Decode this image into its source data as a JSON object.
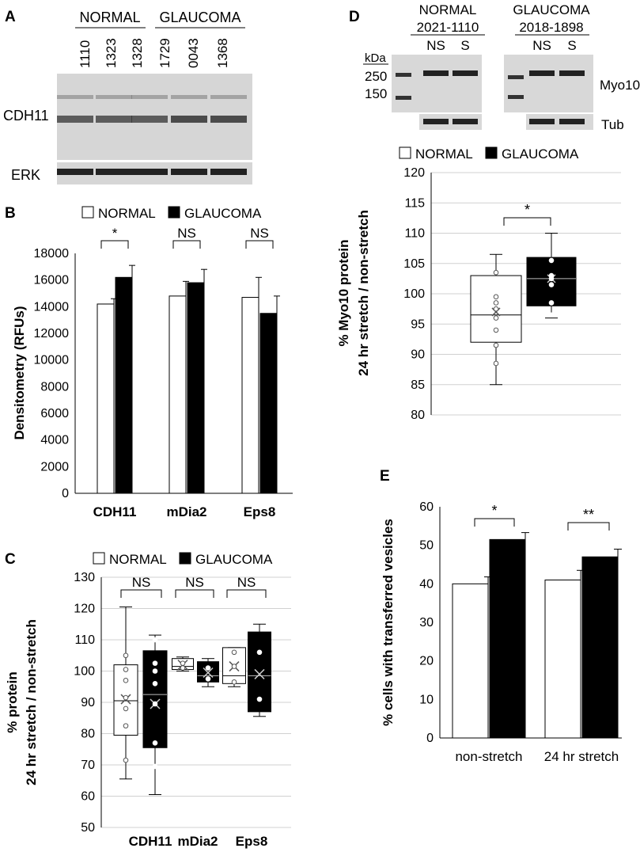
{
  "chart_data": [
    {
      "id": "A",
      "type": "western-blot",
      "panel_label": "A",
      "group_labels": [
        "NORMAL",
        "GLAUCOMA"
      ],
      "lane_labels": [
        "1110",
        "1323",
        "1328",
        "1729",
        "0043",
        "1368"
      ],
      "row_labels": [
        "CDH11",
        "ERK"
      ]
    },
    {
      "id": "B",
      "type": "bar",
      "panel_label": "B",
      "legend": [
        "NORMAL",
        "GLAUCOMA"
      ],
      "categories": [
        "CDH11",
        "mDia2",
        "Eps8"
      ],
      "series": [
        {
          "name": "NORMAL",
          "values": [
            14200,
            14800,
            14700
          ],
          "errors": [
            400,
            1100,
            1500
          ]
        },
        {
          "name": "GLAUCOMA",
          "values": [
            16200,
            15800,
            13500
          ],
          "errors": [
            900,
            1000,
            1300
          ]
        }
      ],
      "significance": [
        "*",
        "NS",
        "NS"
      ],
      "ylabel": "Densitometry (RFUs)",
      "ylim": [
        0,
        18000
      ],
      "yticks": [
        "0",
        "2000",
        "4000",
        "6000",
        "8000",
        "10000",
        "12000",
        "14000",
        "16000",
        "18000"
      ]
    },
    {
      "id": "C",
      "type": "box",
      "panel_label": "C",
      "legend": [
        "NORMAL",
        "GLAUCOMA"
      ],
      "categories": [
        "CDH11",
        "mDia2",
        "Eps8"
      ],
      "ylabel_lines": [
        "% protein",
        "24 hr stretch / non-stretch"
      ],
      "ylim": [
        50,
        130
      ],
      "yticks": [
        "50",
        "60",
        "70",
        "80",
        "90",
        "100",
        "110",
        "120",
        "130"
      ],
      "significance": [
        "NS",
        "NS",
        "NS"
      ],
      "boxes": [
        {
          "group": "NORMAL",
          "category": "CDH11",
          "min": 65.5,
          "q1": 79.5,
          "median": 90.5,
          "q3": 102,
          "max": 120.5,
          "mean": 91,
          "points": [
            71.5,
            82.5,
            88,
            91.5,
            97,
            100.5,
            105
          ]
        },
        {
          "group": "GLAUCOMA",
          "category": "CDH11",
          "min": 60.5,
          "q1": 75.5,
          "median": 92.5,
          "q3": 106.5,
          "max": 111.5,
          "mean": 89.5,
          "points": [
            69.5,
            77,
            89.5,
            96,
            100,
            102.5,
            110
          ]
        },
        {
          "group": "NORMAL",
          "category": "mDia2",
          "min": 100,
          "q1": 100.5,
          "median": 101.5,
          "q3": 104,
          "max": 104.5,
          "mean": 102,
          "points": [
            101,
            102.5
          ]
        },
        {
          "group": "GLAUCOMA",
          "category": "mDia2",
          "min": 95,
          "q1": 96.5,
          "median": 98.5,
          "q3": 103,
          "max": 104,
          "mean": 99.5,
          "points": [
            97.5,
            101
          ]
        },
        {
          "group": "NORMAL",
          "category": "Eps8",
          "min": 95,
          "q1": 96,
          "median": 98.5,
          "q3": 107.5,
          "max": 107.5,
          "mean": 101.5,
          "points": [
            96.5,
            101.5,
            106
          ]
        },
        {
          "group": "GLAUCOMA",
          "category": "Eps8",
          "min": 85.5,
          "q1": 87,
          "median": 98.5,
          "q3": 112.5,
          "max": 115,
          "mean": 99,
          "points": [
            91,
            106
          ]
        }
      ]
    },
    {
      "id": "D-blot",
      "type": "western-blot",
      "panel_label": "D",
      "group_labels": [
        "NORMAL",
        "GLAUCOMA"
      ],
      "group_ids": [
        "2021-1110",
        "2018-1898"
      ],
      "lane_labels": [
        "NS",
        "S",
        "NS",
        "S"
      ],
      "marker_unit": "kDa",
      "markers": [
        "250",
        "150"
      ],
      "row_labels": [
        "Myo10",
        "Tub"
      ]
    },
    {
      "id": "D",
      "type": "box",
      "legend": [
        "NORMAL",
        "GLAUCOMA"
      ],
      "ylabel_lines": [
        "% Myo10 protein",
        "24 hr stretch / non-stretch"
      ],
      "ylim": [
        80,
        120
      ],
      "yticks": [
        "80",
        "85",
        "90",
        "95",
        "100",
        "105",
        "110",
        "115",
        "120"
      ],
      "significance": [
        "*"
      ],
      "boxes": [
        {
          "group": "NORMAL",
          "min": 85,
          "q1": 92,
          "median": 96.5,
          "q3": 103,
          "max": 106.5,
          "mean": 97,
          "points": [
            88.5,
            91.5,
            94,
            96,
            97.5,
            98.5,
            99.5,
            103.5
          ]
        },
        {
          "group": "GLAUCOMA",
          "min": 96,
          "q1": 98,
          "median": 102.5,
          "q3": 106,
          "max": 110,
          "mean": 102.5,
          "points": [
            96.5,
            98.5,
            101.5,
            102.5,
            103,
            105.5
          ]
        }
      ]
    },
    {
      "id": "E",
      "type": "bar",
      "panel_label": "E",
      "categories": [
        "non-stretch",
        "24 hr stretch"
      ],
      "series": [
        {
          "name": "NORMAL",
          "values": [
            40,
            41
          ],
          "errors": [
            1.8,
            2.5
          ]
        },
        {
          "name": "GLAUCOMA",
          "values": [
            51.5,
            47
          ],
          "errors": [
            1.8,
            2
          ]
        }
      ],
      "significance": [
        "*",
        "**"
      ],
      "ylabel": "% cells with transferred vesicles",
      "ylim": [
        0,
        60
      ],
      "yticks": [
        "0",
        "10",
        "20",
        "30",
        "40",
        "50",
        "60"
      ]
    }
  ]
}
